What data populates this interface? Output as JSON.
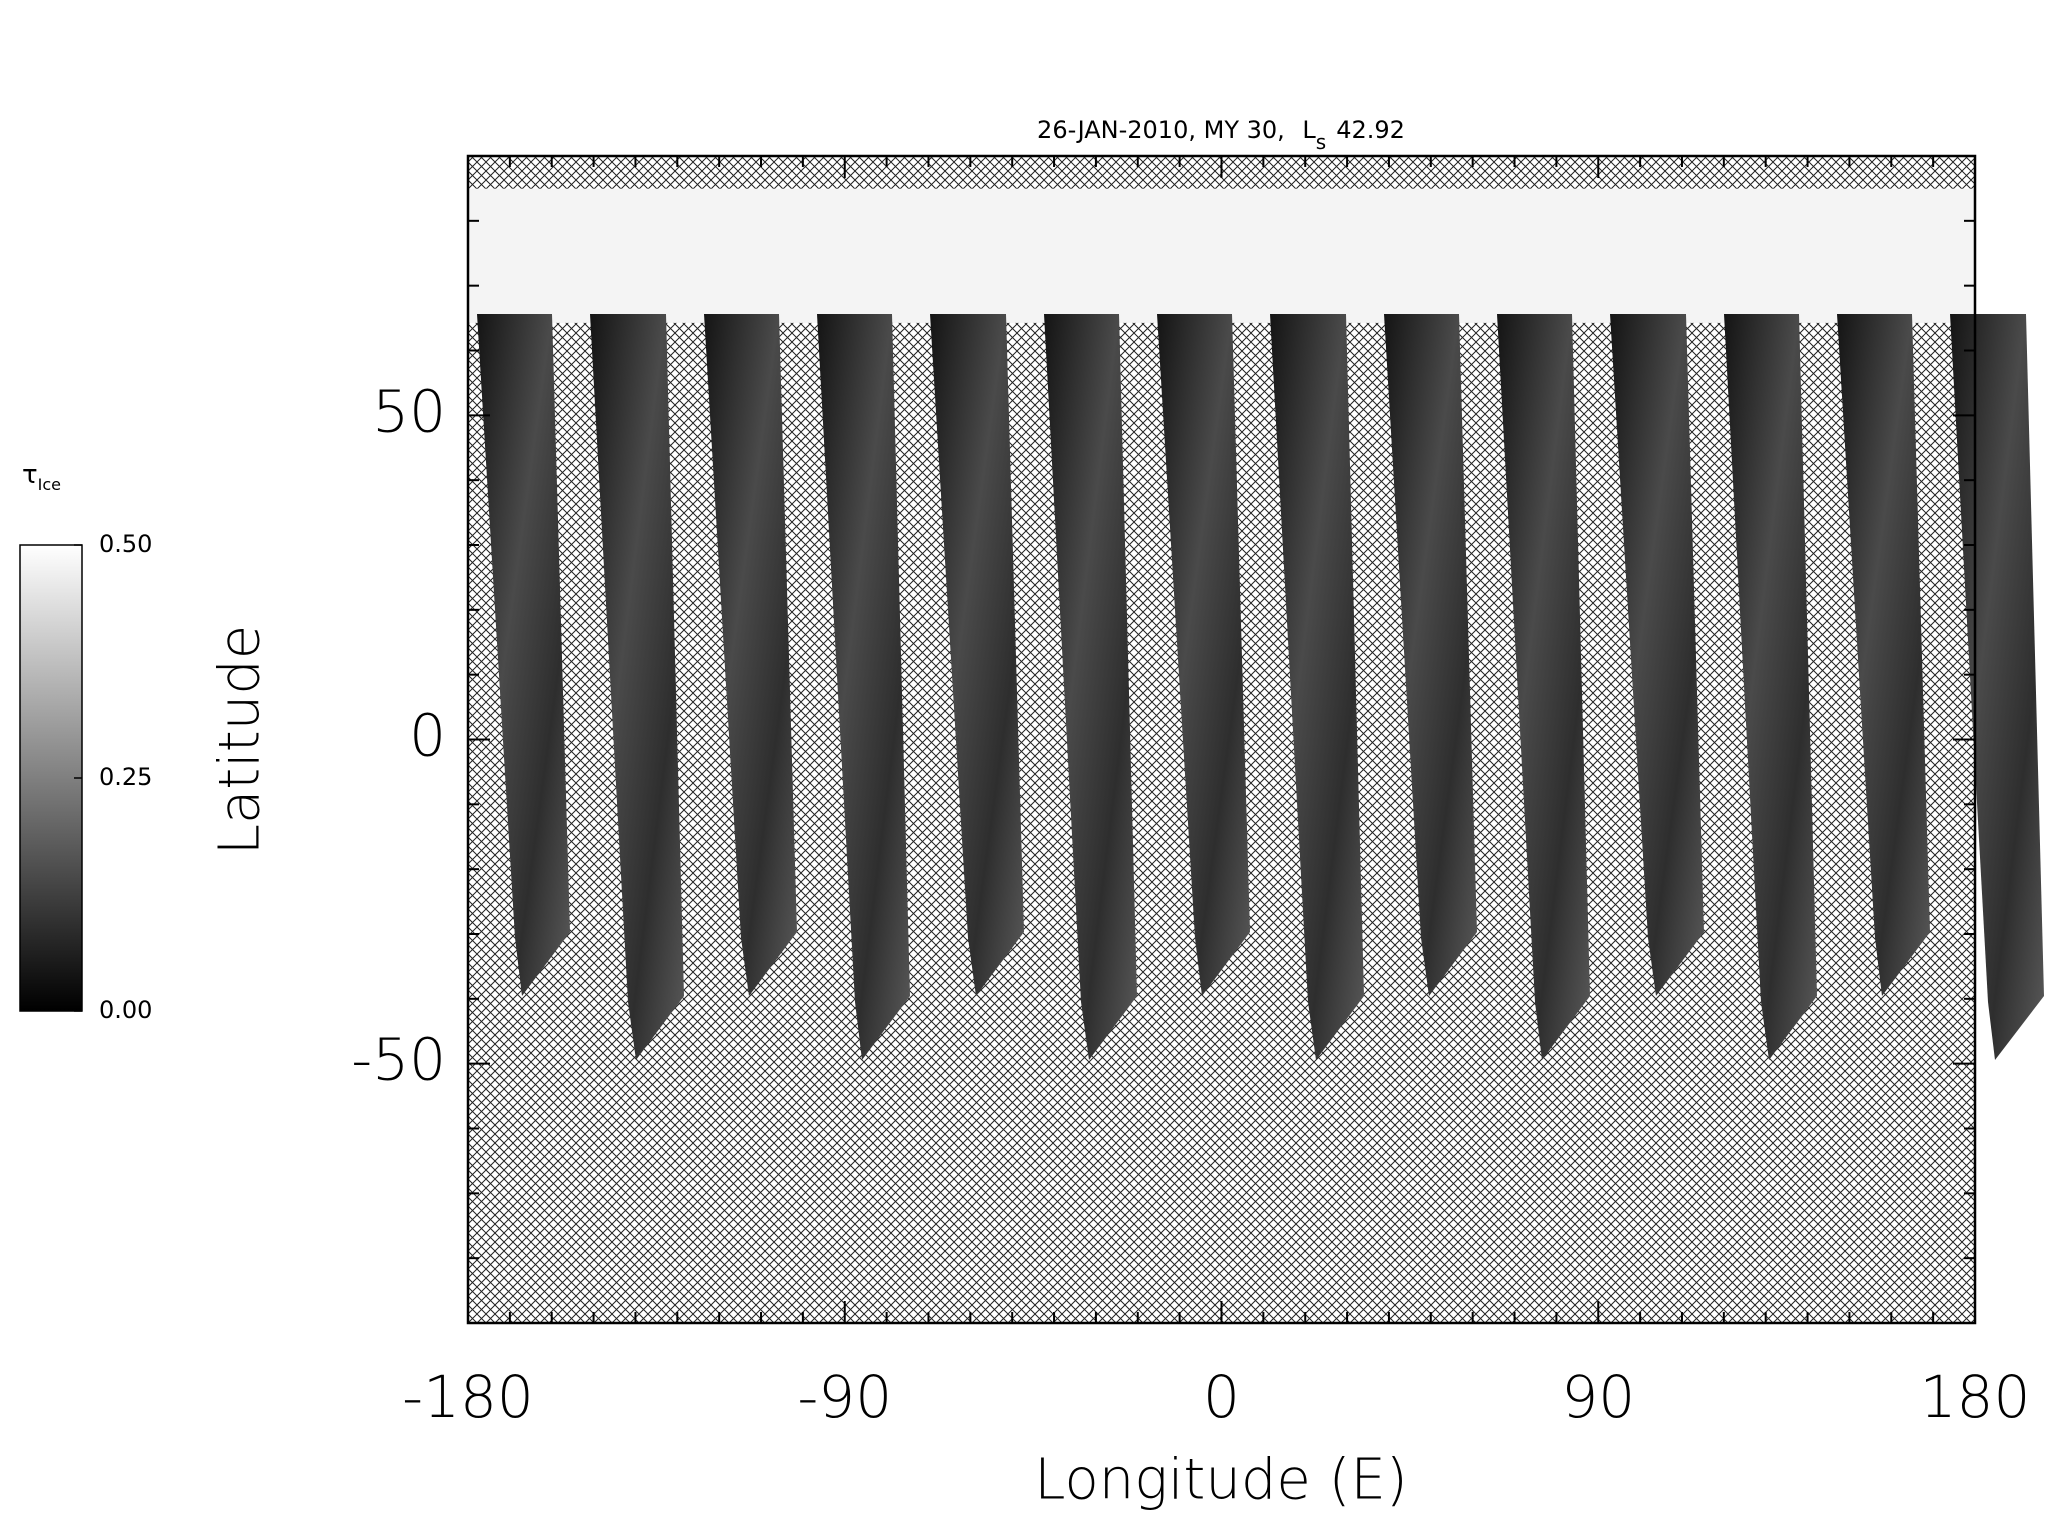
{
  "chart_data": {
    "type": "heatmap",
    "title": {
      "text": "26-JAN-2010, MY 30,",
      "symbol": "L",
      "subscript": "s",
      "value": "42.92"
    },
    "xlabel": "Longitude (E)",
    "ylabel": "Latitude",
    "xlim": [
      -180,
      180
    ],
    "ylim": [
      -90,
      90
    ],
    "xticks": [
      -180,
      -90,
      0,
      90,
      180
    ],
    "yticks": [
      -50,
      0,
      50
    ],
    "xminorticks": [
      -170,
      -160,
      -150,
      -140,
      -130,
      -120,
      -110,
      -100,
      -80,
      -70,
      -60,
      -50,
      -40,
      -30,
      -20,
      -10,
      10,
      20,
      30,
      40,
      50,
      60,
      70,
      80,
      100,
      110,
      120,
      130,
      140,
      150,
      160,
      170
    ],
    "yminorticks": [
      -80,
      -70,
      -60,
      -40,
      -30,
      -20,
      -10,
      10,
      20,
      30,
      40,
      60,
      70,
      80
    ],
    "colorbar": {
      "symbol": "τ",
      "subscript": "Ice",
      "range": [
        0,
        0.5
      ],
      "ticks": [
        {
          "value": 0,
          "label": "0.00"
        },
        {
          "value": 0.25,
          "label": "0.25"
        },
        {
          "value": 0.5,
          "label": "0.50"
        }
      ],
      "colors": [
        "#000000",
        "#ffffff"
      ]
    }
  }
}
